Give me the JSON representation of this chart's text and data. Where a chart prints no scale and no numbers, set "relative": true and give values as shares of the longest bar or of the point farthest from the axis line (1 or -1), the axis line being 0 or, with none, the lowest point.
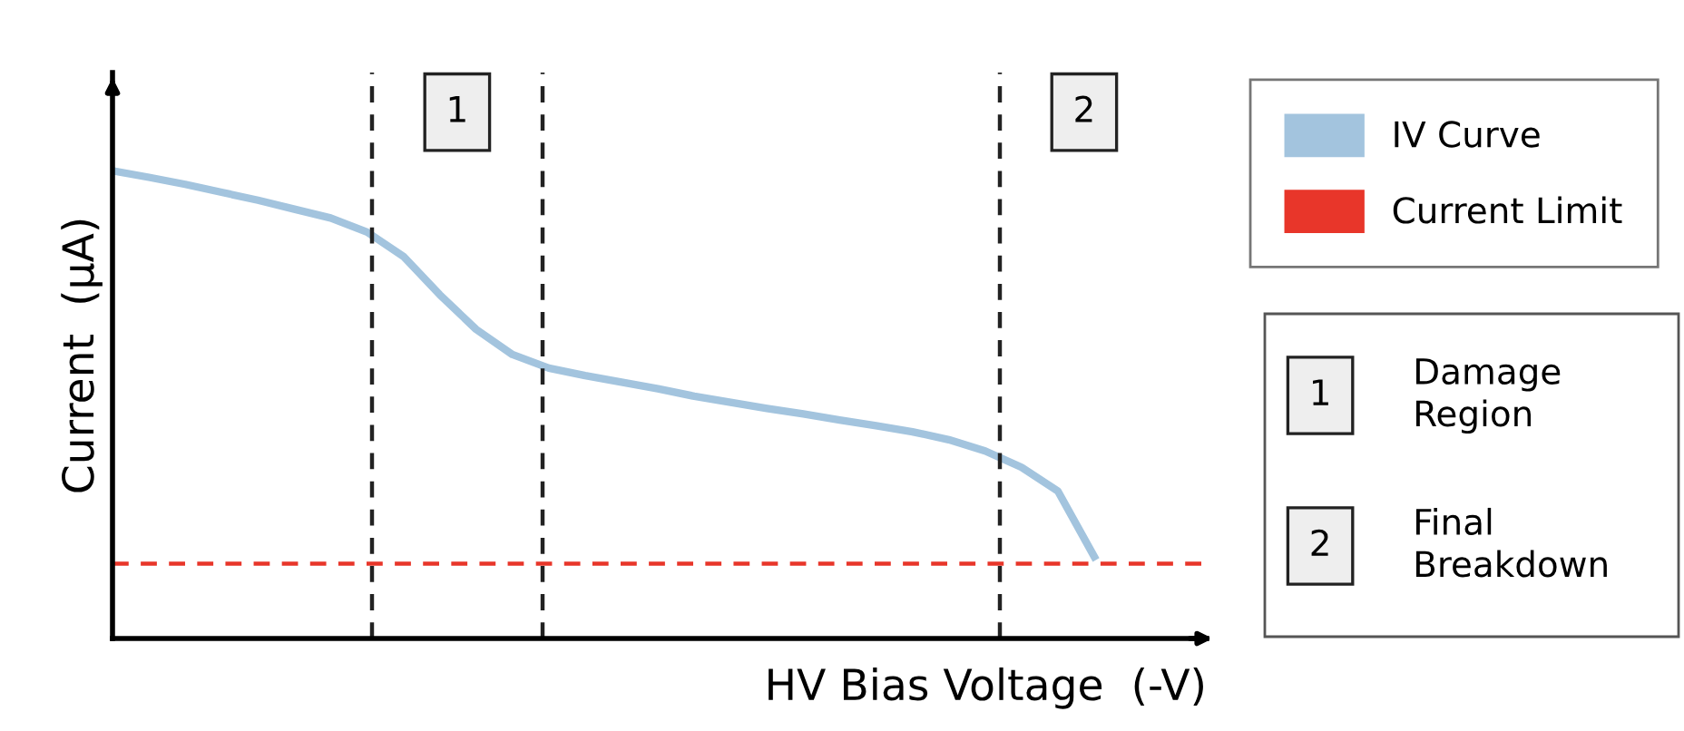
{
  "chart_data": {
    "type": "line",
    "relative": true,
    "xlabel": "HV Bias Voltage  (-V)",
    "ylabel": "Current  (µA)",
    "categories": [
      null,
      null,
      null,
      null,
      null,
      null,
      null,
      null,
      null,
      null,
      null,
      null,
      null,
      null,
      null,
      null,
      null,
      null,
      null,
      null,
      null,
      null,
      null,
      null,
      null,
      null,
      null,
      null
    ],
    "legend": "top right",
    "marker": "none",
    "line_style": "solid",
    "series": [
      {
        "name": "IV Curve",
        "color": "#a3c4de",
        "values": [
          1.0,
          0.986,
          0.971,
          0.954,
          0.937,
          0.918,
          0.899,
          0.869,
          0.817,
          0.735,
          0.661,
          0.607,
          0.578,
          0.562,
          0.548,
          0.534,
          0.518,
          0.505,
          0.492,
          0.48,
          0.467,
          0.455,
          0.442,
          0.425,
          0.401,
          0.366,
          0.315,
          0.175
        ]
      }
    ],
    "ref_lines": [
      {
        "axis": "y",
        "value": 0.16,
        "label": "Current Limit",
        "color": "#e8362a",
        "line_style": "dashed"
      }
    ],
    "annotations": [
      "1",
      "2",
      "1",
      "Damage\nRegion",
      "2",
      "Final\nBreakdown"
    ]
  }
}
